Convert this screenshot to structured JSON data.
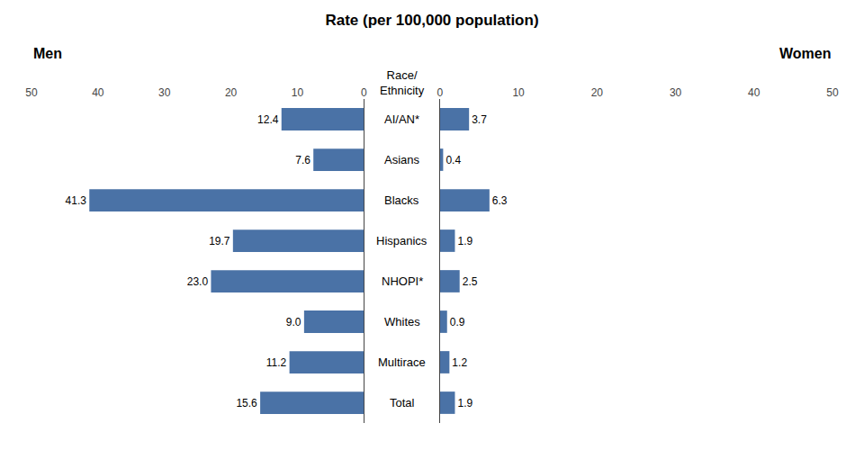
{
  "chart_data": {
    "type": "bar",
    "orientation": "horizontal",
    "title": "Rate (per 100,000 population)",
    "ylabel": "Race/\nEthnicity",
    "categories": [
      "AI/AN*",
      "Asians",
      "Blacks",
      "Hispanics",
      "NHOPI*",
      "Whites",
      "Multirace",
      "Total"
    ],
    "series": [
      {
        "name": "Men",
        "color": "#4a72a6",
        "values": [
          12.4,
          7.6,
          41.3,
          19.7,
          23.0,
          9.0,
          11.2,
          15.6
        ],
        "value_labels": [
          "12.4",
          "7.6",
          "41.3",
          "19.7",
          "23.0",
          "9.0",
          "11.2",
          "15.6"
        ]
      },
      {
        "name": "Women",
        "color": "#4a72a6",
        "values": [
          3.7,
          0.4,
          6.3,
          1.9,
          2.5,
          0.9,
          1.2,
          1.9
        ],
        "value_labels": [
          "3.7",
          "0.4",
          "6.3",
          "1.9",
          "2.5",
          "0.9",
          "1.2",
          "1.9"
        ]
      }
    ],
    "xlim": [
      0,
      50
    ],
    "xticks": [
      0,
      10,
      20,
      30,
      40,
      50
    ],
    "data_labels": true,
    "grid": false
  }
}
